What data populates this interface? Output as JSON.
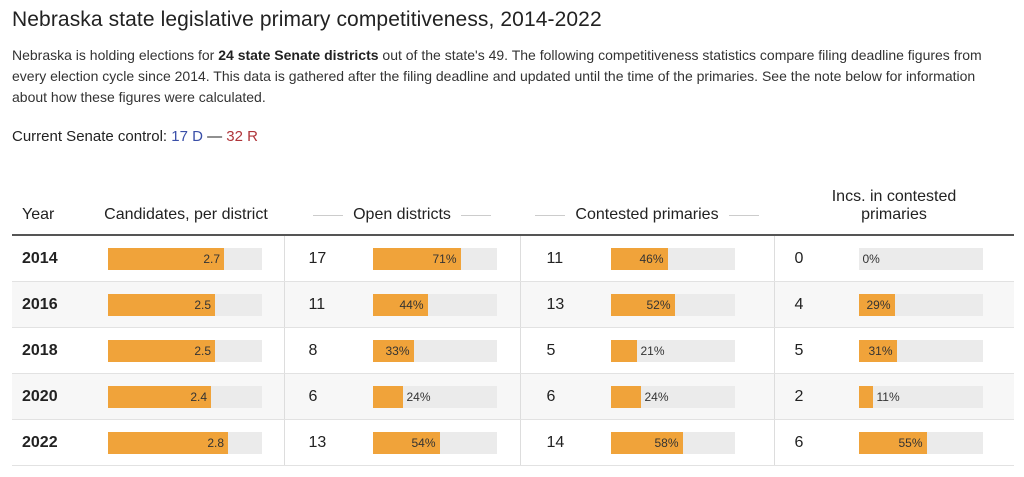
{
  "title": "Nebraska state legislative primary competitiveness, 2014-2022",
  "description": {
    "part1": "Nebraska is holding elections for ",
    "bold": "24 state Senate districts",
    "part2": " out of the state's 49. The following competitiveness statistics compare filing deadline figures from every election cycle since 2014. This data is gathered after the filing deadline and updated until the time of the primaries. See the note below for information about how these figures were calculated."
  },
  "control": {
    "label": "Current Senate control: ",
    "d": "17 D",
    "sep": " — ",
    "r": "32 R"
  },
  "colors": {
    "bar": "#f0a33a",
    "track": "#ebebeb",
    "dem": "#3a4fa8",
    "rep": "#b0353a"
  },
  "chart_data": {
    "type": "table",
    "columns": {
      "year": "Year",
      "candidates": "Candidates, per district",
      "open": "Open districts",
      "contested": "Contested primaries",
      "incs": "Incs. in contested primaries"
    },
    "candidates_max": 3.6,
    "rows": [
      {
        "year": "2014",
        "candidates": 2.7,
        "candidates_label": "2.7",
        "open": "17",
        "open_pct": 71,
        "open_label": "71%",
        "contested": "11",
        "contested_pct": 46,
        "contested_label": "46%",
        "incs": "0",
        "incs_pct": 0,
        "incs_label": "0%"
      },
      {
        "year": "2016",
        "candidates": 2.5,
        "candidates_label": "2.5",
        "open": "11",
        "open_pct": 44,
        "open_label": "44%",
        "contested": "13",
        "contested_pct": 52,
        "contested_label": "52%",
        "incs": "4",
        "incs_pct": 29,
        "incs_label": "29%"
      },
      {
        "year": "2018",
        "candidates": 2.5,
        "candidates_label": "2.5",
        "open": "8",
        "open_pct": 33,
        "open_label": "33%",
        "contested": "5",
        "contested_pct": 21,
        "contested_label": "21%",
        "incs": "5",
        "incs_pct": 31,
        "incs_label": "31%"
      },
      {
        "year": "2020",
        "candidates": 2.4,
        "candidates_label": "2.4",
        "open": "6",
        "open_pct": 24,
        "open_label": "24%",
        "contested": "6",
        "contested_pct": 24,
        "contested_label": "24%",
        "incs": "2",
        "incs_pct": 11,
        "incs_label": "11%"
      },
      {
        "year": "2022",
        "candidates": 2.8,
        "candidates_label": "2.8",
        "open": "13",
        "open_pct": 54,
        "open_label": "54%",
        "contested": "14",
        "contested_pct": 58,
        "contested_label": "58%",
        "incs": "6",
        "incs_pct": 55,
        "incs_label": "55%"
      }
    ]
  }
}
